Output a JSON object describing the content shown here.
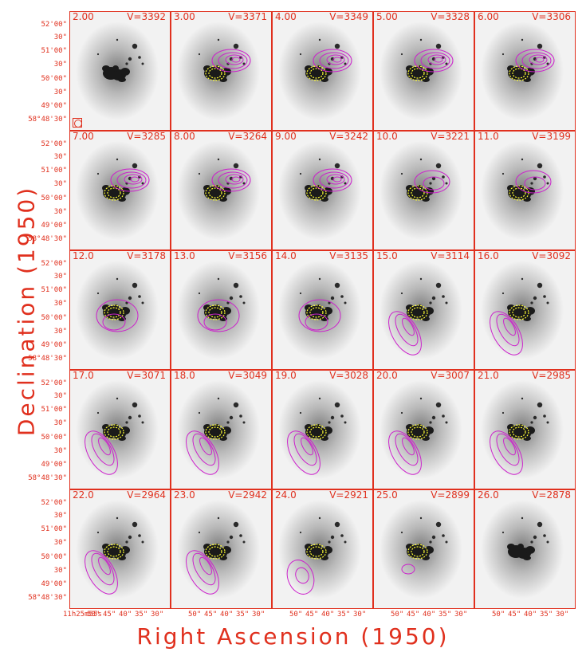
{
  "axes": {
    "xlabel": "Right Ascension (1950)",
    "ylabel": "Declination (1950)",
    "y_ticks": [
      "52'00\"",
      "30\"",
      "51'00\"",
      "30\"",
      "50'00\"",
      "30\"",
      "49'00\"",
      "30\"",
      "58°48'30\""
    ],
    "x_ticks": [
      "11h25m55s",
      "50\"",
      "45\"",
      "40\"",
      "35\"",
      "30\""
    ]
  },
  "colors": {
    "labels": "#e0301e",
    "contours_hi": "#cc22cc",
    "contours_lo": "#ffff33",
    "border": "#e0301e"
  },
  "panels": [
    {
      "ch": "2.00",
      "v": "V=3392"
    },
    {
      "ch": "3.00",
      "v": "V=3371"
    },
    {
      "ch": "4.00",
      "v": "V=3349"
    },
    {
      "ch": "5.00",
      "v": "V=3328"
    },
    {
      "ch": "6.00",
      "v": "V=3306"
    },
    {
      "ch": "7.00",
      "v": "V=3285"
    },
    {
      "ch": "8.00",
      "v": "V=3264"
    },
    {
      "ch": "9.00",
      "v": "V=3242"
    },
    {
      "ch": "10.0",
      "v": "V=3221"
    },
    {
      "ch": "11.0",
      "v": "V=3199"
    },
    {
      "ch": "12.0",
      "v": "V=3178"
    },
    {
      "ch": "13.0",
      "v": "V=3156"
    },
    {
      "ch": "14.0",
      "v": "V=3135"
    },
    {
      "ch": "15.0",
      "v": "V=3114"
    },
    {
      "ch": "16.0",
      "v": "V=3092"
    },
    {
      "ch": "17.0",
      "v": "V=3071"
    },
    {
      "ch": "18.0",
      "v": "V=3049"
    },
    {
      "ch": "19.0",
      "v": "V=3028"
    },
    {
      "ch": "20.0",
      "v": "V=3007"
    },
    {
      "ch": "21.0",
      "v": "V=2985"
    },
    {
      "ch": "22.0",
      "v": "V=2964"
    },
    {
      "ch": "23.0",
      "v": "V=2942"
    },
    {
      "ch": "24.0",
      "v": "V=2921"
    },
    {
      "ch": "25.0",
      "v": "V=2899"
    },
    {
      "ch": "26.0",
      "v": "V=2878"
    }
  ],
  "contour_kind": [
    "none",
    "upper",
    "upper",
    "upper",
    "upper",
    "upper",
    "upper",
    "upper",
    "upper-weak",
    "upper-weak",
    "side",
    "side",
    "side",
    "lower-left",
    "lower-left",
    "lower-left",
    "lower-left",
    "lower-left",
    "lower-left",
    "lower-left",
    "lower-left",
    "lower-left",
    "lower-left-weak",
    "faint",
    "none"
  ]
}
